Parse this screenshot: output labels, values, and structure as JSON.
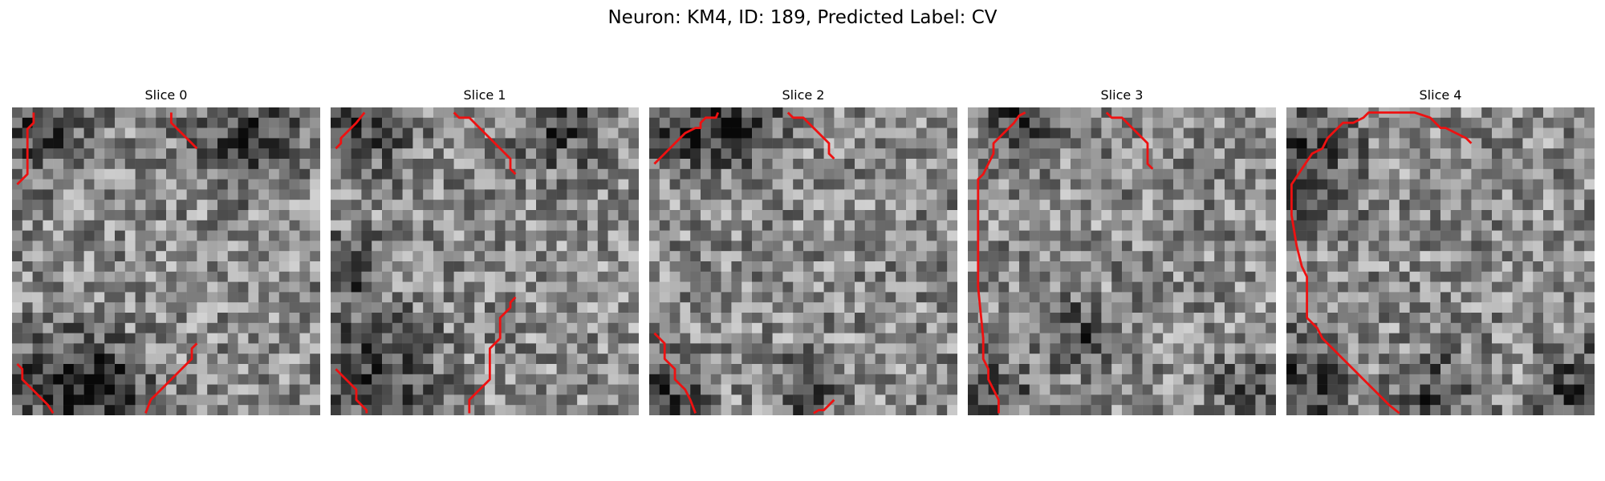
{
  "figure": {
    "title": "Neuron: KM4, ID: 189, Predicted Label: CV"
  },
  "slices": [
    {
      "title": "Slice 0",
      "contours": [
        [
          [
            1.6,
            0
          ],
          [
            1.6,
            1
          ],
          [
            1,
            1.6
          ],
          [
            1,
            6
          ],
          [
            0,
            7
          ]
        ],
        [
          [
            15,
            0
          ],
          [
            15,
            1
          ],
          [
            16,
            2
          ],
          [
            17,
            3
          ],
          [
            17.5,
            3.5
          ]
        ],
        [
          [
            0,
            24.5
          ],
          [
            0.5,
            25
          ],
          [
            0.5,
            26
          ],
          [
            1.5,
            27
          ],
          [
            3,
            28.5
          ],
          [
            3.5,
            29.3
          ]
        ],
        [
          [
            17.5,
            22.5
          ],
          [
            17,
            23
          ],
          [
            17,
            24
          ],
          [
            16,
            25
          ],
          [
            15,
            26
          ],
          [
            14,
            27
          ],
          [
            13,
            28
          ],
          [
            12.5,
            29.3
          ]
        ]
      ]
    },
    {
      "title": "Slice 1",
      "contours": [
        [
          [
            2.8,
            0
          ],
          [
            2,
            1
          ],
          [
            1,
            2
          ],
          [
            0.5,
            2.5
          ],
          [
            0.5,
            3
          ],
          [
            0,
            3.5
          ]
        ],
        [
          [
            11.5,
            0
          ],
          [
            12,
            0.5
          ],
          [
            13,
            0.5
          ],
          [
            14,
            1.5
          ],
          [
            15,
            2.5
          ],
          [
            16,
            3.5
          ],
          [
            17,
            4.5
          ],
          [
            17,
            5.5
          ],
          [
            17.5,
            6
          ]
        ],
        [
          [
            17.5,
            18
          ],
          [
            17,
            18.5
          ],
          [
            17,
            19
          ],
          [
            16,
            20
          ],
          [
            16,
            22
          ],
          [
            15,
            23
          ],
          [
            15,
            26
          ],
          [
            14,
            27
          ],
          [
            13,
            28
          ],
          [
            13,
            29.3
          ]
        ],
        [
          [
            0,
            25
          ],
          [
            1,
            26
          ],
          [
            1.5,
            26.5
          ],
          [
            2,
            27
          ],
          [
            2,
            28
          ],
          [
            3,
            29
          ],
          [
            3,
            29.3
          ]
        ]
      ]
    },
    {
      "title": "Slice 2",
      "contours": [
        [
          [
            6.2,
            0
          ],
          [
            6,
            0.5
          ],
          [
            5,
            0.5
          ],
          [
            4.5,
            1
          ],
          [
            4.5,
            1.5
          ],
          [
            4,
            1.5
          ],
          [
            3,
            2
          ],
          [
            2,
            3
          ],
          [
            1,
            4
          ],
          [
            0.5,
            4.5
          ],
          [
            0,
            5
          ]
        ],
        [
          [
            13,
            0
          ],
          [
            13.5,
            0.5
          ],
          [
            14.5,
            0.5
          ],
          [
            15,
            1
          ],
          [
            15.5,
            1.5
          ],
          [
            16.5,
            2.5
          ],
          [
            17,
            3
          ],
          [
            17,
            4
          ],
          [
            17.5,
            4.5
          ]
        ],
        [
          [
            0,
            21.5
          ],
          [
            1,
            22.5
          ],
          [
            1,
            24
          ],
          [
            2,
            25
          ],
          [
            2,
            26
          ],
          [
            3,
            27
          ],
          [
            3.5,
            28
          ],
          [
            4,
            29.3
          ]
        ],
        [
          [
            15.5,
            29.3
          ],
          [
            16,
            29
          ],
          [
            16.5,
            29
          ],
          [
            17,
            28.5
          ],
          [
            17.5,
            28
          ]
        ]
      ]
    },
    {
      "title": "Slice 3",
      "contours": [
        [
          [
            5.1,
            0
          ],
          [
            4.5,
            0.3
          ],
          [
            4,
            1
          ],
          [
            3,
            2
          ],
          [
            2,
            3
          ],
          [
            2,
            4
          ],
          [
            1.5,
            5
          ],
          [
            1,
            6
          ],
          [
            0.5,
            6.5
          ],
          [
            0.5,
            8
          ],
          [
            0.5,
            17
          ],
          [
            1,
            22
          ],
          [
            1,
            24
          ],
          [
            1.5,
            25
          ],
          [
            1.5,
            26
          ],
          [
            2,
            27
          ],
          [
            2.5,
            28
          ],
          [
            2.5,
            29.3
          ]
        ],
        [
          [
            13,
            0
          ],
          [
            13.5,
            0.5
          ],
          [
            14.5,
            0.5
          ],
          [
            15.5,
            1.5
          ],
          [
            16,
            2
          ],
          [
            16.5,
            2.5
          ],
          [
            17,
            3
          ],
          [
            17,
            5
          ],
          [
            17.5,
            5.5
          ]
        ]
      ]
    },
    {
      "title": "Slice 4",
      "contours": [
        [
          [
            17.5,
            3
          ],
          [
            17,
            2.5
          ],
          [
            16,
            2
          ],
          [
            15,
            1.5
          ],
          [
            14.5,
            1.5
          ],
          [
            13.5,
            0.5
          ],
          [
            12,
            0
          ],
          [
            7.5,
            0
          ],
          [
            7,
            0.5
          ],
          [
            6,
            1
          ],
          [
            5,
            1
          ],
          [
            4.5,
            1.5
          ],
          [
            3.5,
            2.5
          ],
          [
            3,
            3.5
          ],
          [
            2,
            4
          ],
          [
            1,
            5.5
          ],
          [
            0,
            7
          ],
          [
            0,
            10
          ],
          [
            0.5,
            13
          ],
          [
            1,
            15
          ],
          [
            1.5,
            16
          ],
          [
            1.5,
            20
          ],
          [
            2.5,
            21
          ],
          [
            3,
            22
          ],
          [
            4,
            23
          ],
          [
            5,
            24
          ],
          [
            6,
            25
          ],
          [
            7,
            26
          ],
          [
            7.5,
            26.5
          ],
          [
            8,
            27
          ],
          [
            9,
            28
          ],
          [
            9.5,
            28.5
          ],
          [
            10.5,
            29.3
          ]
        ]
      ]
    }
  ]
}
